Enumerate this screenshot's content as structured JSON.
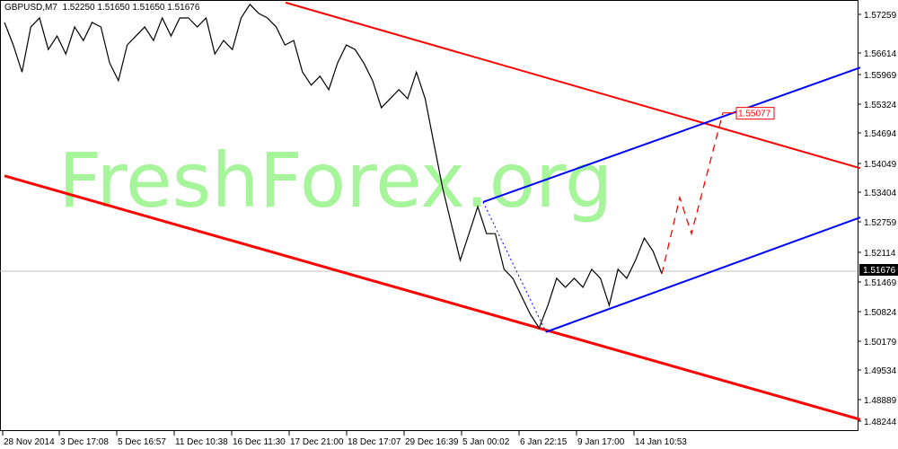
{
  "header": {
    "symbol": "GBPUSD,M7",
    "ohlc": [
      "1.52250",
      "1.51650",
      "1.51650",
      "1.51676"
    ]
  },
  "watermark": "FreshForex.org",
  "chart_data": {
    "type": "line",
    "y_ticks": [
      "1.57259",
      "1.56614",
      "1.55969",
      "1.55324",
      "1.54694",
      "1.54049",
      "1.53404",
      "1.52759",
      "1.52114",
      "1.51469",
      "1.50824",
      "1.50179",
      "1.49534",
      "1.48889",
      "1.48244"
    ],
    "x_ticks": [
      "28 Nov 2014",
      "3 Dec 17:08",
      "5 Dec 16:57",
      "11 Dec 10:38",
      "16 Dec 11:30",
      "17 Dec 21:00",
      "18 Dec 17:07",
      "29 Dec 16:39",
      "5 Jan 00:02",
      "6 Jan 22:15",
      "9 Jan 17:00",
      "14 Jan 10:53"
    ],
    "ylim": [
      1.48,
      1.5757
    ],
    "current_price": "1.51676",
    "price_series": [
      1.5708,
      1.5658,
      1.5598,
      1.5698,
      1.5718,
      1.5648,
      1.5678,
      1.5638,
      1.5698,
      1.5668,
      1.5708,
      1.5698,
      1.5618,
      1.5579,
      1.5658,
      1.5678,
      1.5698,
      1.5668,
      1.5718,
      1.5678,
      1.5718,
      1.5718,
      1.5698,
      1.5718,
      1.5638,
      1.5668,
      1.5648,
      1.5718,
      1.5748,
      1.5728,
      1.5718,
      1.5698,
      1.5658,
      1.5668,
      1.5598,
      1.5569,
      1.5589,
      1.5559,
      1.5618,
      1.5658,
      1.5648,
      1.5618,
      1.5579,
      1.5519,
      1.5539,
      1.5559,
      1.5539,
      1.5598,
      1.5539,
      1.5439,
      1.534,
      1.526,
      1.5181,
      1.524,
      1.53,
      1.524,
      1.524,
      1.5161,
      1.5141,
      1.5101,
      1.5061,
      1.5031,
      1.5081,
      1.5141,
      1.5121,
      1.5141,
      1.5121,
      1.5161,
      1.5141,
      1.5081,
      1.5161,
      1.5141,
      1.5181,
      1.523,
      1.5201,
      1.5151
    ],
    "forecast": {
      "values": [
        1.5151,
        1.532,
        1.524,
        1.55077
      ],
      "label": "1.55077",
      "color": "#ff0000"
    },
    "trendlines": [
      {
        "color": "#ff0000",
        "from": 1.5752,
        "to": 1.5385
      },
      {
        "color": "#ff0000",
        "from": 1.5368,
        "to": 1.4828
      },
      {
        "color": "#0000ff",
        "from": 1.5022,
        "to": 1.5276
      },
      {
        "color": "#0000ff",
        "from": 1.531,
        "to": 1.5608
      }
    ],
    "grid": false
  }
}
